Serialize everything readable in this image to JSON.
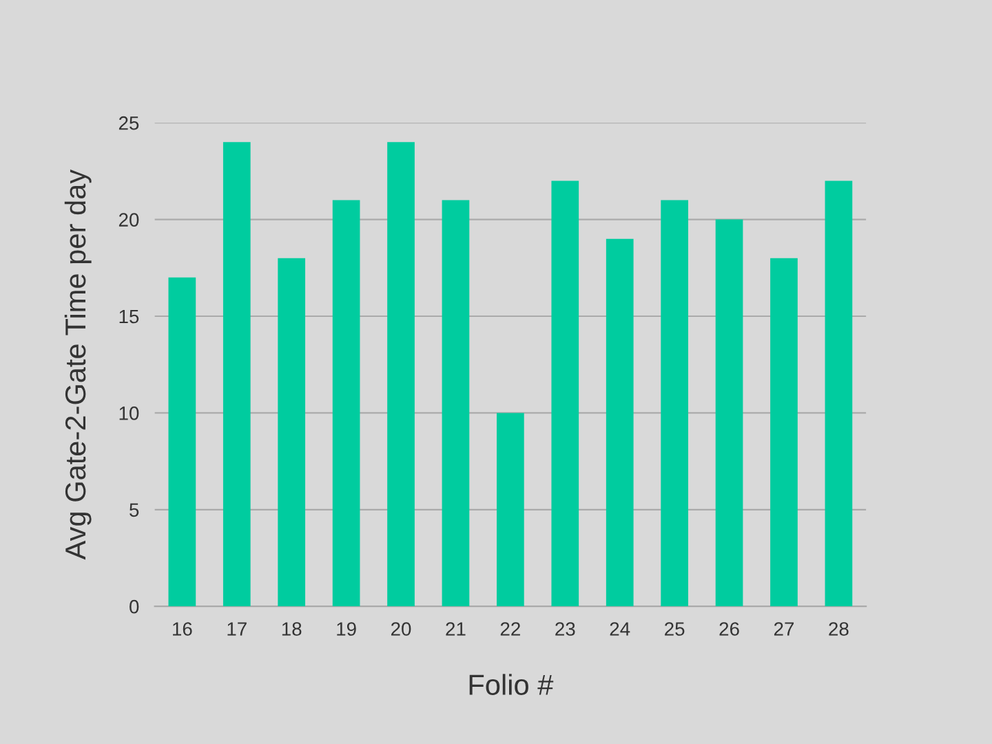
{
  "chart_data": {
    "type": "bar",
    "xlabel": "Folio #",
    "ylabel": "Avg Gate-2-Gate Time per day",
    "categories": [
      "16",
      "17",
      "18",
      "19",
      "20",
      "21",
      "22",
      "23",
      "24",
      "25",
      "26",
      "27",
      "28"
    ],
    "values": [
      17,
      24,
      18,
      21,
      24,
      21,
      10,
      22,
      19,
      21,
      20,
      18,
      22
    ],
    "color": "#00cc9f",
    "ylim": [
      0,
      25
    ],
    "yticks": [
      0,
      5,
      10,
      15,
      20,
      25
    ],
    "grid": "y",
    "legend": false
  }
}
